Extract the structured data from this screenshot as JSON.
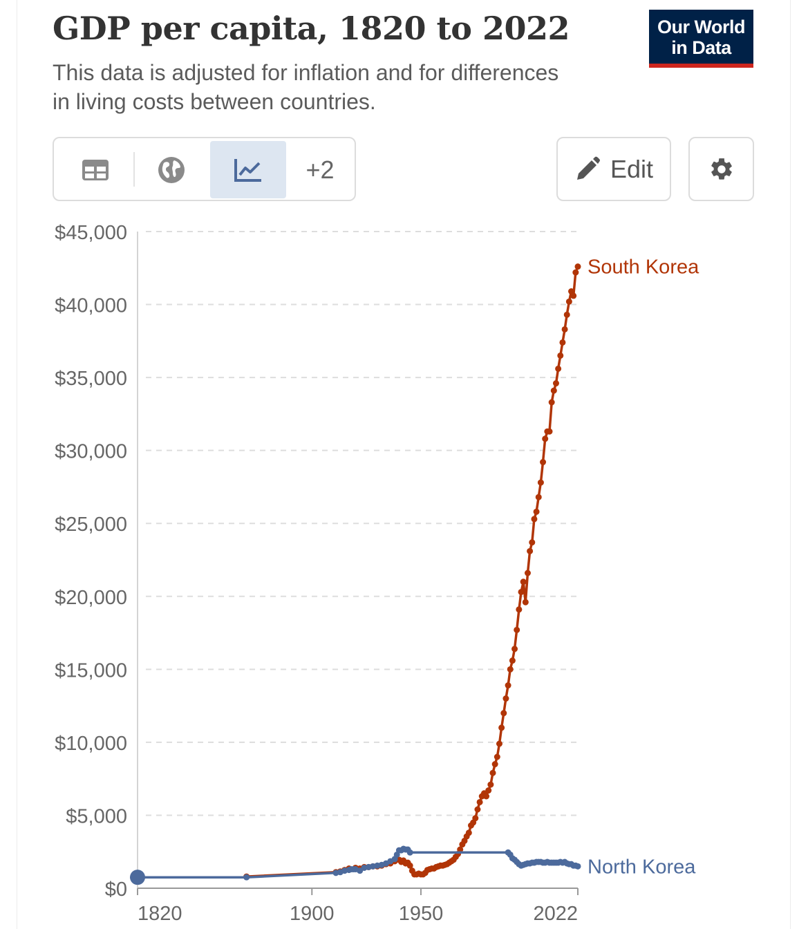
{
  "header": {
    "title": "GDP per capita, 1820 to 2022",
    "subtitle": "This data is adjusted for inflation and for differences in living costs between countries.",
    "logo_line1": "Our World",
    "logo_line2": "in Data"
  },
  "toolbar": {
    "tabs": [
      {
        "name": "table",
        "icon": "table-icon"
      },
      {
        "name": "map",
        "icon": "globe-icon"
      },
      {
        "name": "chart",
        "icon": "line-chart-icon",
        "active": true
      }
    ],
    "more_label": "+2",
    "edit_label": "Edit",
    "settings_icon": "gear-icon"
  },
  "colors": {
    "south_korea": "#b13507",
    "north_korea": "#4c6a9c",
    "logo_bg": "#002147",
    "logo_stripe": "#ce261e",
    "active_tab": "#dde6f1"
  },
  "chart_data": {
    "type": "line",
    "title": "GDP per capita, 1820 to 2022",
    "xlabel": "",
    "ylabel": "",
    "xlim": [
      1820,
      2022
    ],
    "ylim": [
      0,
      45000
    ],
    "x_ticks": [
      {
        "value": 1820,
        "label": "1820"
      },
      {
        "value": 1900,
        "label": "1900"
      },
      {
        "value": 1950,
        "label": "1950"
      },
      {
        "value": 2022,
        "label": "2022"
      }
    ],
    "y_ticks": [
      {
        "value": 0,
        "label": "$0"
      },
      {
        "value": 5000,
        "label": "$5,000"
      },
      {
        "value": 10000,
        "label": "$10,000"
      },
      {
        "value": 15000,
        "label": "$15,000"
      },
      {
        "value": 20000,
        "label": "$20,000"
      },
      {
        "value": 25000,
        "label": "$25,000"
      },
      {
        "value": 30000,
        "label": "$30,000"
      },
      {
        "value": 35000,
        "label": "$35,000"
      },
      {
        "value": 40000,
        "label": "$40,000"
      },
      {
        "value": 45000,
        "label": "$45,000"
      }
    ],
    "grid": true,
    "legend": "line-end labels",
    "series": [
      {
        "name": "South Korea",
        "points": [
          [
            1870,
            800
          ],
          [
            1911,
            1100
          ],
          [
            1913,
            1150
          ],
          [
            1915,
            1250
          ],
          [
            1917,
            1350
          ],
          [
            1920,
            1400
          ],
          [
            1922,
            1350
          ],
          [
            1924,
            1450
          ],
          [
            1926,
            1450
          ],
          [
            1928,
            1500
          ],
          [
            1930,
            1500
          ],
          [
            1932,
            1550
          ],
          [
            1934,
            1650
          ],
          [
            1936,
            1700
          ],
          [
            1938,
            1850
          ],
          [
            1940,
            1950
          ],
          [
            1941,
            1800
          ],
          [
            1942,
            1900
          ],
          [
            1943,
            1700
          ],
          [
            1944,
            1750
          ],
          [
            1945,
            1550
          ],
          [
            1946,
            1200
          ],
          [
            1947,
            950
          ],
          [
            1948,
            950
          ],
          [
            1949,
            1000
          ],
          [
            1950,
            950
          ],
          [
            1951,
            950
          ],
          [
            1952,
            1050
          ],
          [
            1953,
            1250
          ],
          [
            1954,
            1300
          ],
          [
            1955,
            1350
          ],
          [
            1956,
            1350
          ],
          [
            1957,
            1450
          ],
          [
            1958,
            1500
          ],
          [
            1959,
            1550
          ],
          [
            1960,
            1550
          ],
          [
            1961,
            1600
          ],
          [
            1962,
            1650
          ],
          [
            1963,
            1750
          ],
          [
            1964,
            1850
          ],
          [
            1965,
            1950
          ],
          [
            1966,
            2150
          ],
          [
            1967,
            2350
          ],
          [
            1968,
            2650
          ],
          [
            1969,
            3000
          ],
          [
            1970,
            3250
          ],
          [
            1971,
            3550
          ],
          [
            1972,
            3800
          ],
          [
            1973,
            4300
          ],
          [
            1974,
            4500
          ],
          [
            1975,
            4800
          ],
          [
            1976,
            5400
          ],
          [
            1977,
            5900
          ],
          [
            1978,
            6300
          ],
          [
            1979,
            6500
          ],
          [
            1980,
            6300
          ],
          [
            1981,
            6700
          ],
          [
            1982,
            7100
          ],
          [
            1983,
            7900
          ],
          [
            1984,
            8500
          ],
          [
            1985,
            9000
          ],
          [
            1986,
            9900
          ],
          [
            1987,
            11000
          ],
          [
            1988,
            12000
          ],
          [
            1989,
            13000
          ],
          [
            1990,
            13900
          ],
          [
            1991,
            15000
          ],
          [
            1992,
            15600
          ],
          [
            1993,
            16400
          ],
          [
            1994,
            17700
          ],
          [
            1995,
            19100
          ],
          [
            1996,
            20300
          ],
          [
            1997,
            21000
          ],
          [
            1998,
            19600
          ],
          [
            1999,
            21600
          ],
          [
            2000,
            23100
          ],
          [
            2001,
            23700
          ],
          [
            2002,
            25300
          ],
          [
            2003,
            25800
          ],
          [
            2004,
            26800
          ],
          [
            2005,
            27800
          ],
          [
            2006,
            29200
          ],
          [
            2007,
            30800
          ],
          [
            2008,
            31300
          ],
          [
            2009,
            31300
          ],
          [
            2010,
            33300
          ],
          [
            2011,
            34100
          ],
          [
            2012,
            34600
          ],
          [
            2013,
            35600
          ],
          [
            2014,
            36500
          ],
          [
            2015,
            37400
          ],
          [
            2016,
            38300
          ],
          [
            2017,
            39300
          ],
          [
            2018,
            40200
          ],
          [
            2019,
            40900
          ],
          [
            2020,
            40600
          ],
          [
            2021,
            42200
          ],
          [
            2022,
            42600
          ]
        ]
      },
      {
        "name": "North Korea",
        "points": [
          [
            1820,
            750
          ],
          [
            1870,
            750
          ],
          [
            1911,
            1050
          ],
          [
            1913,
            1100
          ],
          [
            1915,
            1200
          ],
          [
            1917,
            1250
          ],
          [
            1918,
            1300
          ],
          [
            1919,
            1300
          ],
          [
            1920,
            1300
          ],
          [
            1922,
            1200
          ],
          [
            1924,
            1400
          ],
          [
            1926,
            1450
          ],
          [
            1928,
            1500
          ],
          [
            1930,
            1550
          ],
          [
            1932,
            1600
          ],
          [
            1934,
            1700
          ],
          [
            1936,
            1850
          ],
          [
            1938,
            2000
          ],
          [
            1939,
            2300
          ],
          [
            1940,
            2600
          ],
          [
            1941,
            2600
          ],
          [
            1942,
            2700
          ],
          [
            1943,
            2650
          ],
          [
            1944,
            2650
          ],
          [
            1945,
            2450
          ],
          [
            1990,
            2450
          ],
          [
            1991,
            2300
          ],
          [
            1992,
            2050
          ],
          [
            1993,
            1950
          ],
          [
            1994,
            1800
          ],
          [
            1995,
            1650
          ],
          [
            1996,
            1550
          ],
          [
            1997,
            1600
          ],
          [
            1998,
            1650
          ],
          [
            1999,
            1700
          ],
          [
            2000,
            1700
          ],
          [
            2001,
            1750
          ],
          [
            2002,
            1750
          ],
          [
            2003,
            1800
          ],
          [
            2004,
            1800
          ],
          [
            2005,
            1800
          ],
          [
            2006,
            1750
          ],
          [
            2007,
            1750
          ],
          [
            2008,
            1800
          ],
          [
            2009,
            1750
          ],
          [
            2010,
            1750
          ],
          [
            2011,
            1750
          ],
          [
            2012,
            1750
          ],
          [
            2013,
            1750
          ],
          [
            2014,
            1800
          ],
          [
            2015,
            1750
          ],
          [
            2016,
            1800
          ],
          [
            2017,
            1700
          ],
          [
            2018,
            1650
          ],
          [
            2019,
            1650
          ],
          [
            2020,
            1550
          ],
          [
            2021,
            1550
          ],
          [
            2022,
            1500
          ]
        ]
      }
    ]
  }
}
